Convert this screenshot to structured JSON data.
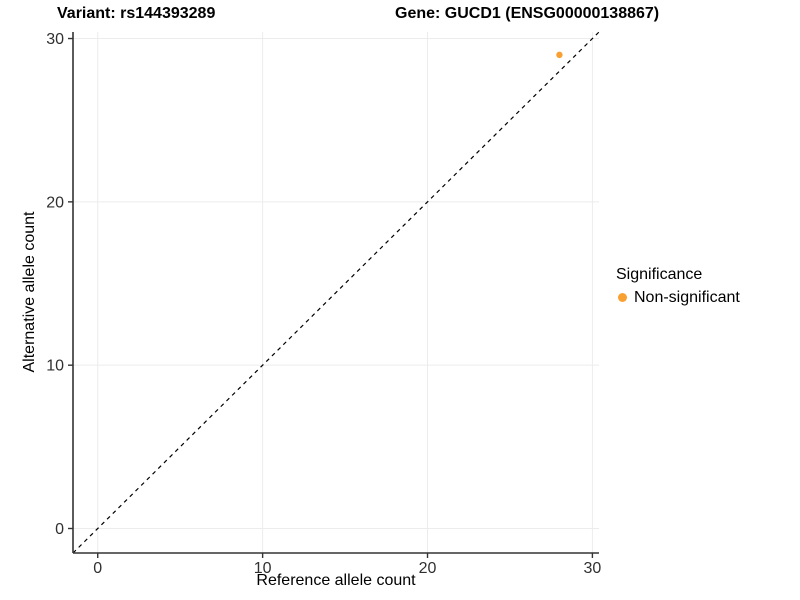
{
  "chart_data": {
    "type": "scatter",
    "title_left": "Variant: rs144393289",
    "title_right": "Gene: GUCD1 (ENSG00000138867)",
    "xlabel": "Reference allele count",
    "ylabel": "Alternative allele count",
    "xlim": [
      -1.5,
      30.4
    ],
    "ylim": [
      -1.5,
      30.4
    ],
    "x_ticks": [
      0,
      10,
      20,
      30
    ],
    "y_ticks": [
      0,
      10,
      20,
      30
    ],
    "grid": "major-only",
    "legend_position": "right",
    "legend_title": "Significance",
    "series": [
      {
        "name": "Non-significant",
        "color": "#F9A032",
        "points": [
          {
            "x": 28,
            "y": 29
          }
        ]
      }
    ],
    "reference_line": {
      "kind": "identity",
      "slope": 1,
      "intercept": 0,
      "style": "dashed",
      "color": "#000000"
    }
  },
  "colors": {
    "background": "#FFFFFF",
    "grid": "#ECECEC",
    "axis": "#333333",
    "tick_text": "#303030",
    "dashed_line": "#000000"
  }
}
